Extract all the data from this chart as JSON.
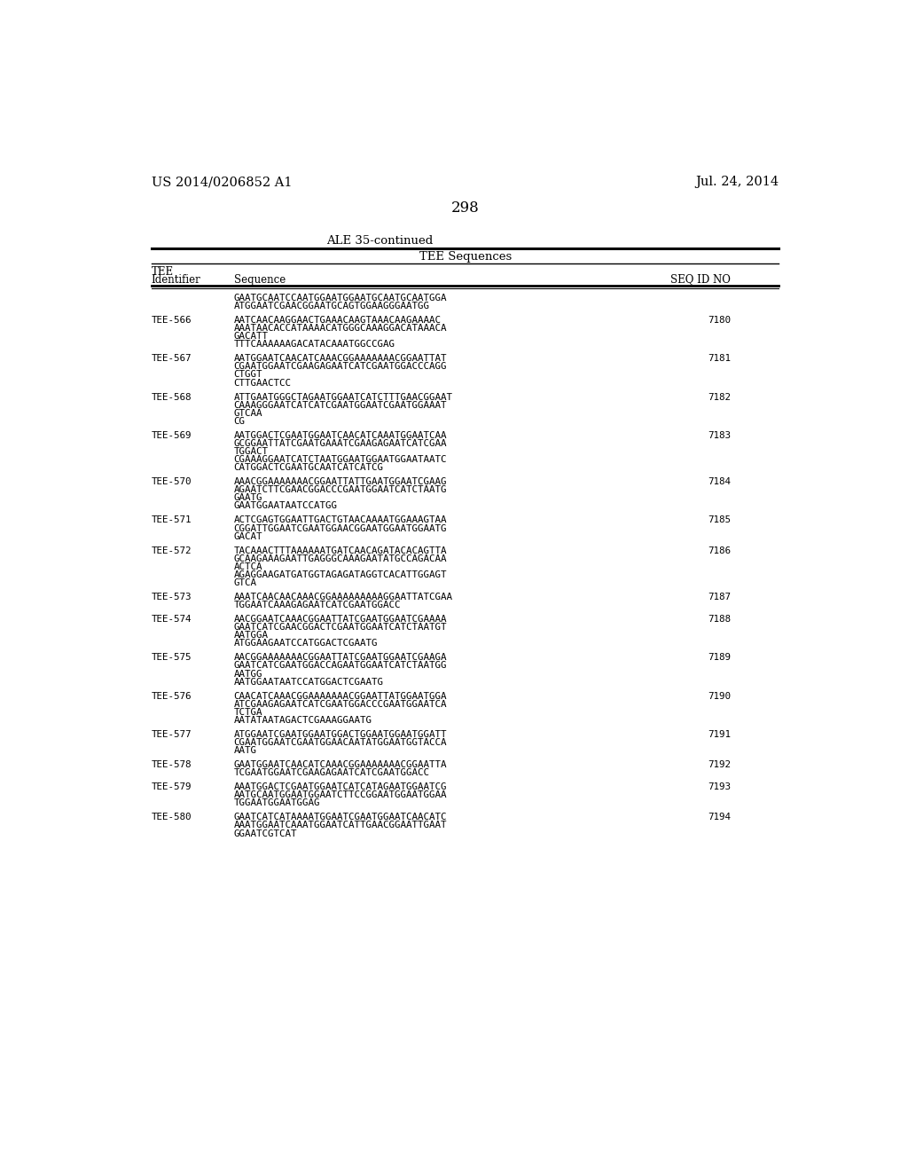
{
  "bg_color": "#ffffff",
  "header_left": "US 2014/0206852 A1",
  "header_right": "Jul. 24, 2014",
  "page_number": "298",
  "table_title": "ALE 35-continued",
  "col_header_center": "TEE Sequences",
  "col1_label1": "TEE",
  "col1_label2": "Identifier",
  "col2_header": "Sequence",
  "col3_header": "SEQ ID NO",
  "entries": [
    {
      "id": "",
      "seq_id": "",
      "lines": [
        "GAATGCAATCCAATGGAATGGAATGCAATGCAATGGA",
        "ATGGAATCGAACGGAATGCAGTGGAAGGGAATGG"
      ]
    },
    {
      "id": "TEE-566",
      "seq_id": "7180",
      "lines": [
        "AATCAACAAGGAACTGAAACAAGTAAACAAGAAAAC",
        "AAATAACACCATAAAACATGGGCAAAGGACATAAACA",
        "GACATT",
        "TTTCAAAAAAGACATACAAATGGCCGAG"
      ]
    },
    {
      "id": "TEE-567",
      "seq_id": "7181",
      "lines": [
        "AATGGAATCAACATCAAACGGAAAAAAACGGAATTAT",
        "CGAATGGAATCGAAGAGAATCATCGAATGGACCCAGG",
        "CTGGT",
        "CTTGAACTCC"
      ]
    },
    {
      "id": "TEE-568",
      "seq_id": "7182",
      "lines": [
        "ATTGAATGGGCTAGAATGGAATCATCTTTGAACGGAAT",
        "CAAAGGGAATCATCATCGAATGGAATCGAATGGAAAT",
        "GTCAA",
        "CG"
      ]
    },
    {
      "id": "TEE-569",
      "seq_id": "7183",
      "lines": [
        "AATGGACTCGAATGGAATCAACATCAAATGGAATCAA",
        "GCGGAATTATCGAATGAAATCGAAGAGAATCATCGAA",
        "TGGACT",
        "CGAAAGGAATCATCTAATGGAATGGAATGGAATAATC",
        "CATGGACTCGAATGCAATCATCATCG"
      ]
    },
    {
      "id": "TEE-570",
      "seq_id": "7184",
      "lines": [
        "AAACGGAAAAAAACGGAATTATTGAATGGAATCGAAG",
        "AGAATCTTCGAACGGACCCGAATGGAATCATCTAATG",
        "GAATG",
        "GAATGGAATAATCCATGG"
      ]
    },
    {
      "id": "TEE-571",
      "seq_id": "7185",
      "lines": [
        "ACTCGAGTGGAATTGACTGTAACAAAATGGAAAGTAA",
        "CGGATTGGAATCGAATGGAACGGAATGGAATGGAATG",
        "GACAT"
      ]
    },
    {
      "id": "TEE-572",
      "seq_id": "7186",
      "lines": [
        "TACAAACTTTAAAAAATGATCAACAGATACACAGTTA",
        "GCAAGAAAGAATTGAGGGCAAAGAATATGCCAGACAA",
        "ACTCA",
        "AGAGGAAGATGATGGTAGAGATAGGTCACATTGGAGT",
        "GTCA"
      ]
    },
    {
      "id": "TEE-573",
      "seq_id": "7187",
      "lines": [
        "AAATCAACAACAAACGGAAAAAAAAAGGAATTATCGAA",
        "TGGAATCAAAGAGAATCATCGAATGGACC"
      ]
    },
    {
      "id": "TEE-574",
      "seq_id": "7188",
      "lines": [
        "AACGGAATCAAACGGAATTATCGAATGGAATCGAAAA",
        "GAATCATCGAACGGACTCGAATGGAATCATCTAATGT",
        "AATGGA",
        "ATGGAAGAATCCATGGACTCGAATG"
      ]
    },
    {
      "id": "TEE-575",
      "seq_id": "7189",
      "lines": [
        "AACGGAAAAAAACGGAATTATCGAATGGAATCGAAGA",
        "GAATCATCGAATGGACCAGAATGGAATCATCTAATGG",
        "AATGG",
        "AATGGAATAATCCATGGACTCGAATG"
      ]
    },
    {
      "id": "TEE-576",
      "seq_id": "7190",
      "lines": [
        "CAACATCAAACGGAAAAAAACGGAATTATGGAATGGA",
        "ATCGAAGAGAATCATCGAATGGACCCGAATGGAATCA",
        "TCTGA",
        "AATATAATAGACTCGAAAGGAATG"
      ]
    },
    {
      "id": "TEE-577",
      "seq_id": "7191",
      "lines": [
        "ATGGAATCGAATGGAATGGACTGGAATGGAATGGATT",
        "CGAATGGAATCGAATGGAACAATATGGAATGGTACCA",
        "AATG"
      ]
    },
    {
      "id": "TEE-578",
      "seq_id": "7192",
      "lines": [
        "GAATGGAATCAACATCAAACGGAAAAAAACGGAATTA",
        "TCGAATGGAATCGAAGAGAATCATCGAATGGACC"
      ]
    },
    {
      "id": "TEE-579",
      "seq_id": "7193",
      "lines": [
        "AAATGGACTCGAATGGAATCATCATAGAATGGAATCG",
        "AATGCAATGGAATGGAATCTTCCGGAATGGAATGGAA",
        "TGGAATGGAATGGAG"
      ]
    },
    {
      "id": "TEE-580",
      "seq_id": "7194",
      "lines": [
        "GAATCATCATAAAATGGAATCGAATGGAATCAACATC",
        "AAATGGAATCAAATGGAATCATTGAACGGAATTGAAT",
        "GGAATCGTCAT"
      ]
    }
  ]
}
